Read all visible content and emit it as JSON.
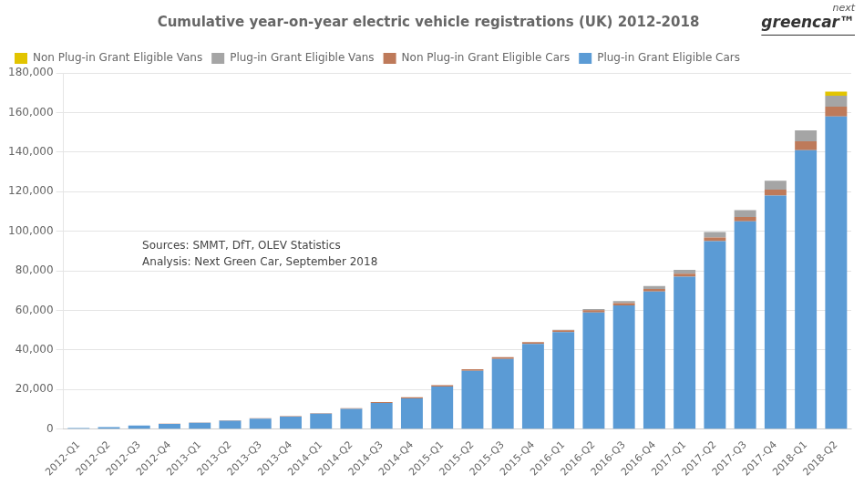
{
  "chart_data": {
    "type": "bar",
    "title": "Cumulative year-on-year electric vehicle registrations (UK) 2012-2018",
    "categories": [
      "2012-Q1",
      "2012-Q2",
      "2012-Q3",
      "2012-Q4",
      "2013-Q1",
      "2013-Q2",
      "2013-Q3",
      "2013-Q4",
      "2014-Q1",
      "2014-Q2",
      "2014-Q3",
      "2014-Q4",
      "2015-Q1",
      "2015-Q2",
      "2015-Q3",
      "2015-Q4",
      "2016-Q1",
      "2016-Q2",
      "2016-Q3",
      "2016-Q4",
      "2017-Q1",
      "2017-Q2",
      "2017-Q3",
      "2017-Q4",
      "2018-Q1",
      "2018-Q2"
    ],
    "series": [
      {
        "name": "Plug-in Grant Eligible Cars",
        "color": "#5B9BD5",
        "values": [
          500,
          1000,
          1800,
          2600,
          3200,
          4300,
          5300,
          6300,
          7800,
          10200,
          13200,
          15500,
          21500,
          29500,
          35500,
          43000,
          49000,
          59000,
          62500,
          69500,
          77000,
          95000,
          105000,
          118000,
          141000,
          158000
        ]
      },
      {
        "name": "Non Plug-in Grant Eligible Cars",
        "color": "#BE7A5A",
        "values": [
          0,
          0,
          0,
          100,
          100,
          200,
          200,
          200,
          300,
          400,
          500,
          600,
          700,
          800,
          900,
          1000,
          1000,
          1100,
          1200,
          1300,
          1500,
          1800,
          2200,
          3000,
          4500,
          5000
        ]
      },
      {
        "name": "Plug-in Grant Eligible Vans",
        "color": "#A5A5A5",
        "values": [
          0,
          0,
          0,
          0,
          0,
          0,
          0,
          0,
          0,
          0,
          0,
          0,
          0,
          0,
          0,
          0,
          200,
          600,
          1000,
          1500,
          2000,
          2800,
          3500,
          4500,
          5500,
          5500
        ]
      },
      {
        "name": "Non Plug-in Grant Eligible Vans",
        "color": "#E2C400",
        "values": [
          0,
          0,
          0,
          0,
          0,
          0,
          0,
          0,
          0,
          0,
          0,
          0,
          0,
          0,
          0,
          0,
          0,
          0,
          0,
          0,
          0,
          0,
          0,
          0,
          0,
          2000
        ]
      }
    ],
    "stacked": true,
    "ylim": [
      0,
      180000
    ],
    "yticks": [
      0,
      {
        "value": 20000,
        "label": "20,000"
      },
      {
        "value": 40000,
        "label": "40,000"
      },
      {
        "value": 60000,
        "label": "60,000"
      },
      {
        "value": 80000,
        "label": "80,000"
      },
      {
        "value": 100000,
        "label": "100,000"
      },
      {
        "value": 120000,
        "label": "120,000"
      },
      {
        "value": 140000,
        "label": "140,000"
      },
      {
        "value": 160000,
        "label": "160,000"
      },
      {
        "value": 180000,
        "label": "180,000"
      }
    ],
    "grid": true,
    "legend": "upper left",
    "annotations": [
      "Sources: SMMT, DfT, OLEV Statistics",
      "Analysis: Next Green Car, September 2018",
      "next",
      "greencar™"
    ]
  }
}
